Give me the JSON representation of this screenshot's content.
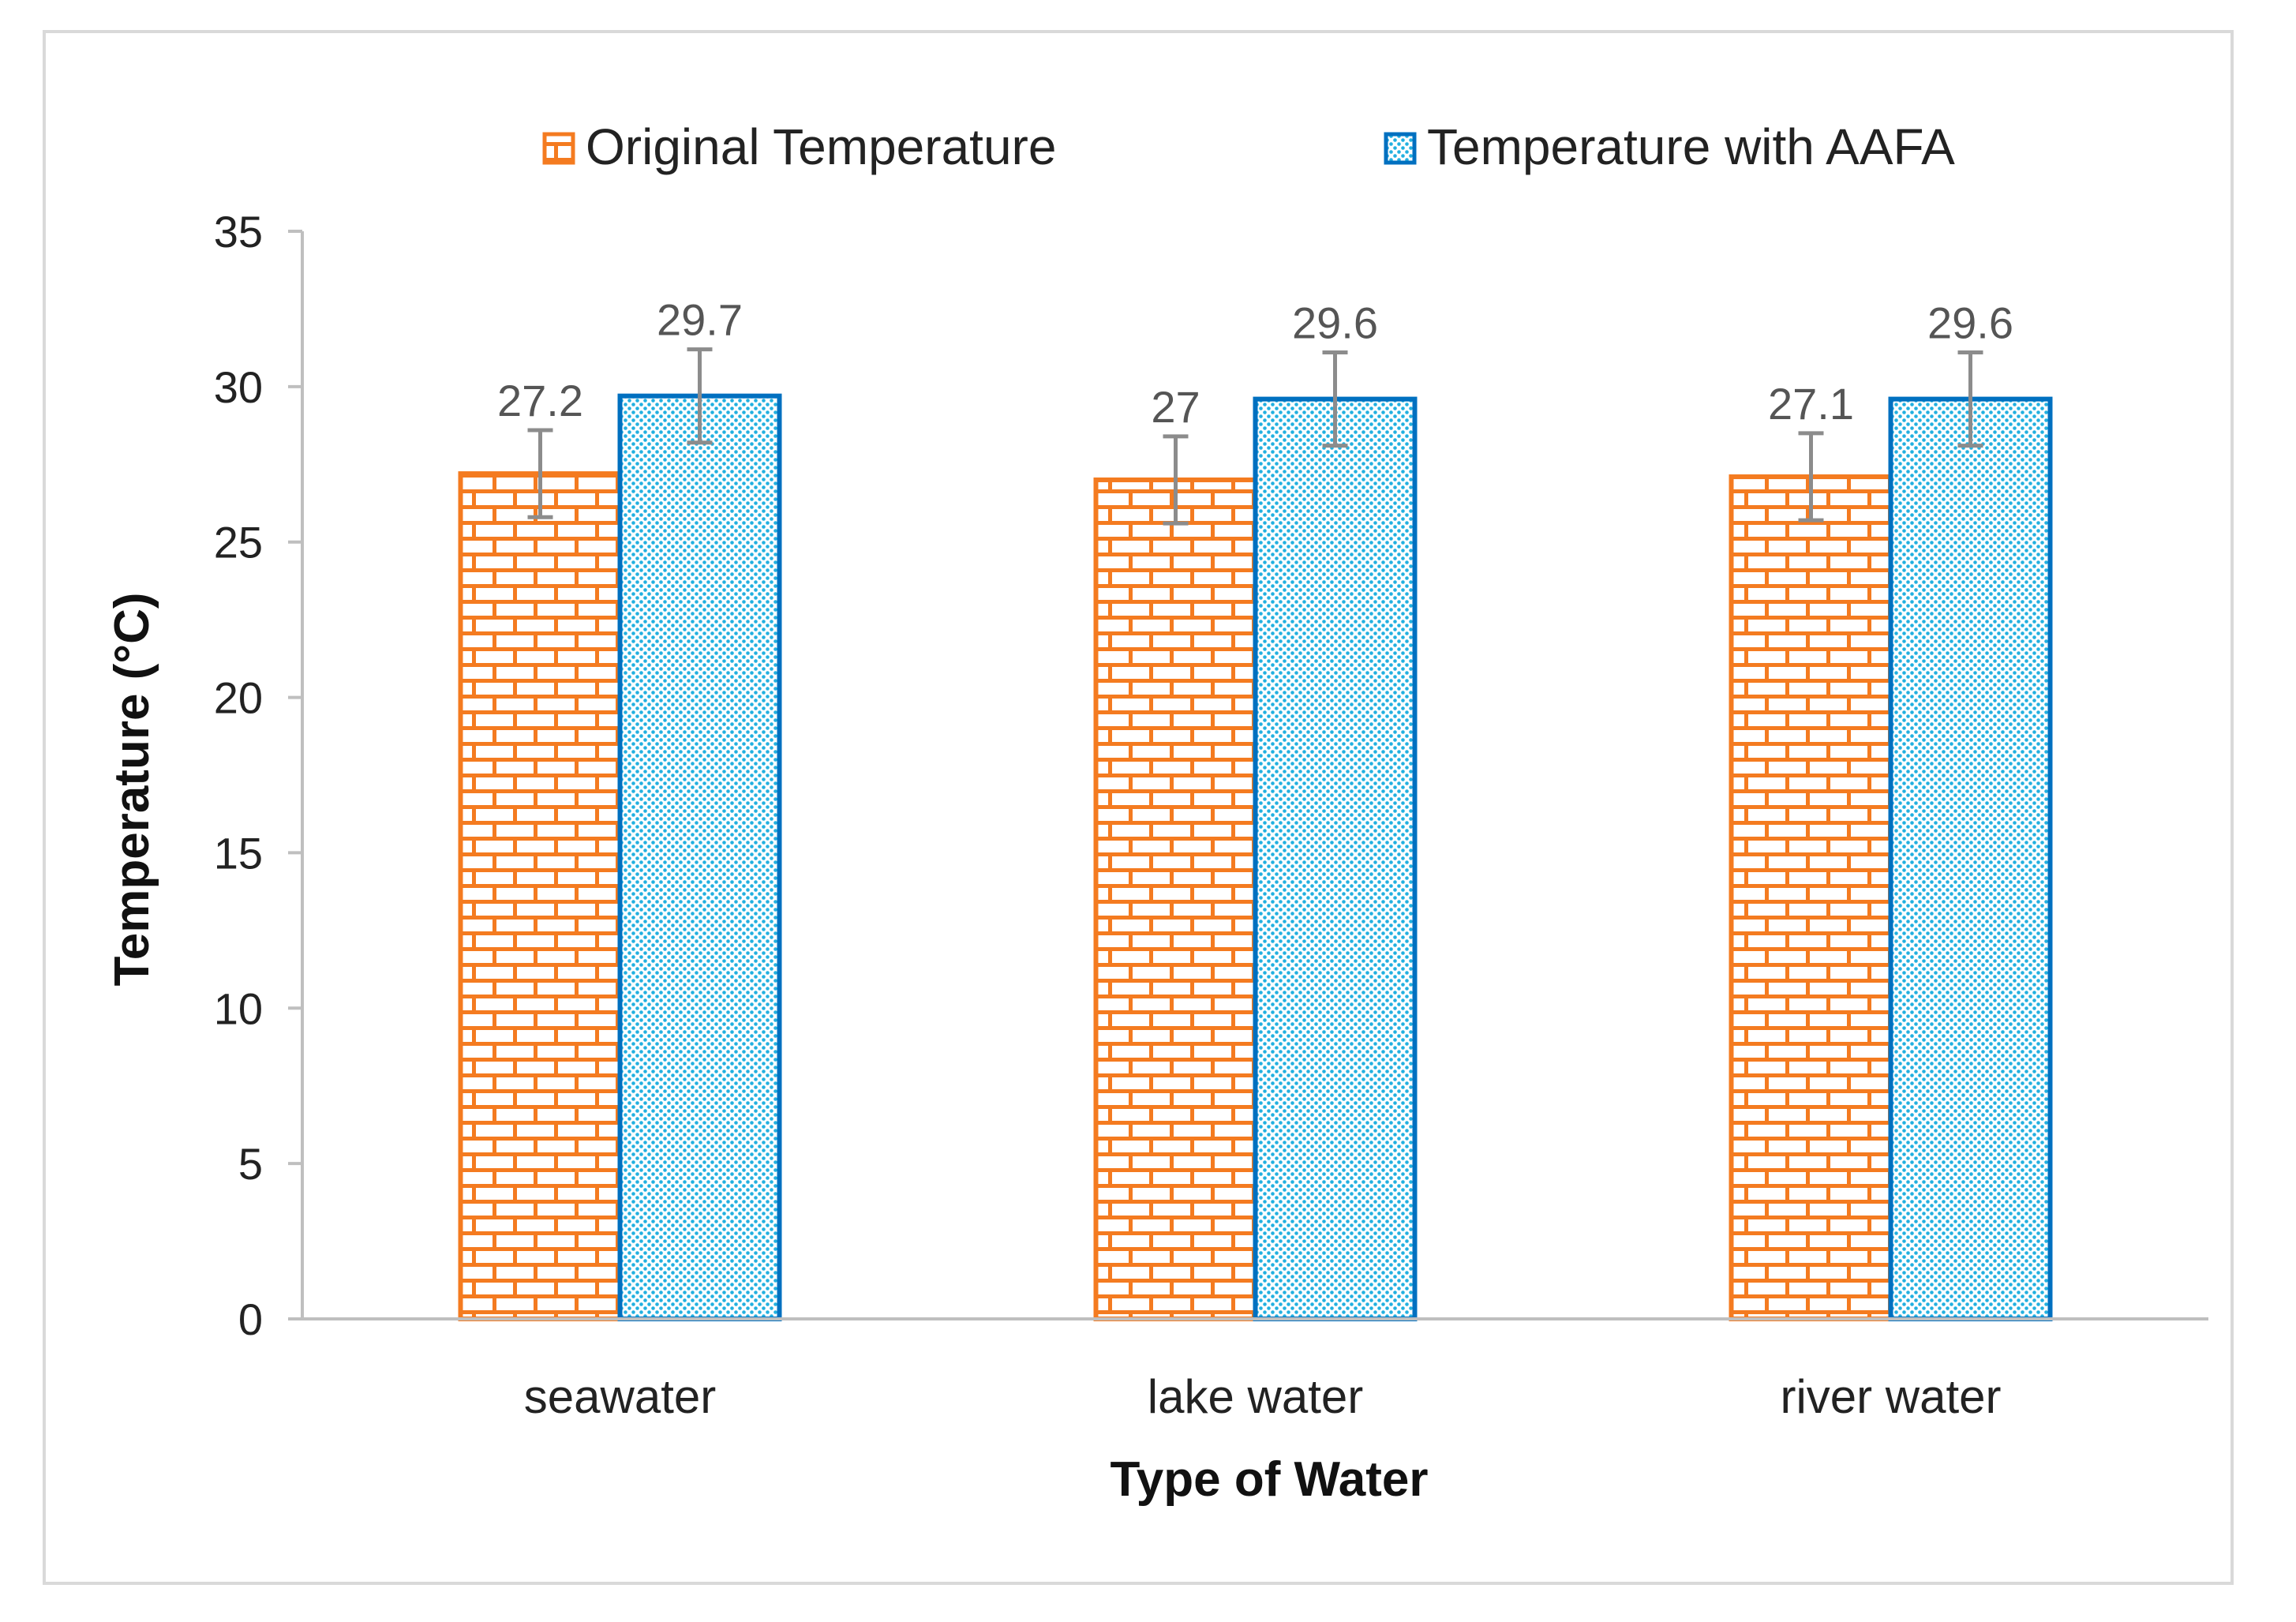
{
  "chart_data": {
    "type": "bar",
    "title": "",
    "xlabel": "Type of Water",
    "ylabel": "Temperature (°C)",
    "ylim": [
      0,
      35
    ],
    "yticks": [
      0,
      5,
      10,
      15,
      20,
      25,
      30,
      35
    ],
    "grid": false,
    "legend_position": "top",
    "categories": [
      "seawater",
      "lake water",
      "river water"
    ],
    "series": [
      {
        "name": "Original Temperature",
        "values": [
          27.2,
          27,
          27.1
        ],
        "labels": [
          "27.2",
          "27",
          "27.1"
        ],
        "errors": [
          1.4,
          1.4,
          1.4
        ]
      },
      {
        "name": "Temperature with AAFA",
        "values": [
          29.7,
          29.6,
          29.6
        ],
        "labels": [
          "29.7",
          "29.6",
          "29.6"
        ],
        "errors": [
          1.5,
          1.5,
          1.5
        ]
      }
    ],
    "colors": {
      "orig_edge": "#f47b20",
      "orig_fill": "#f47b20",
      "aafa_edge": "#0070c0",
      "aafa_dot": "#22b0e0",
      "error_bar": "#8c8c8c",
      "axis": "#bfbfbf"
    }
  }
}
